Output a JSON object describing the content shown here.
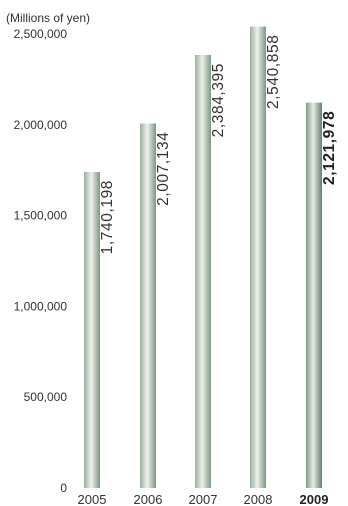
{
  "chart_data": {
    "type": "bar",
    "unit_label": "(Millions of yen)",
    "categories": [
      "2005",
      "2006",
      "2007",
      "2008",
      "2009"
    ],
    "values": [
      1740198,
      2007134,
      2384395,
      2540858,
      2121978
    ],
    "value_labels": [
      "1,740,198",
      "2,007,134",
      "2,384,395",
      "2,540,858",
      "2,121,978"
    ],
    "highlight_index": 4,
    "ylim": [
      0,
      2500000
    ],
    "yticks": [
      {
        "value": 0,
        "label": "0"
      },
      {
        "value": 500000,
        "label": "500,000"
      },
      {
        "value": 1000000,
        "label": "1,000,000"
      },
      {
        "value": 1500000,
        "label": "1,500,000"
      },
      {
        "value": 2000000,
        "label": "2,000,000"
      },
      {
        "value": 2500000,
        "label": "2,500,000"
      }
    ],
    "grid": false,
    "legend": "none",
    "colors": {
      "bar_dark": "#8fa596",
      "bar_light": "#eef2ea",
      "bar_highlight_dark": "#6f8b78",
      "text": "#333333"
    }
  }
}
